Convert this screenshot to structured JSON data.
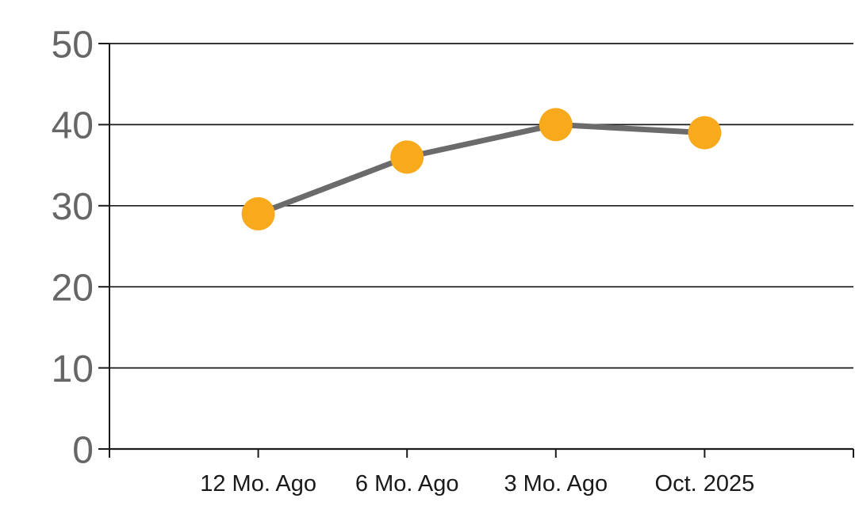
{
  "chart_data": {
    "type": "line",
    "categories": [
      "12 Mo. Ago",
      "6 Mo. Ago",
      "3 Mo. Ago",
      "Oct. 2025"
    ],
    "values": [
      29,
      36,
      40,
      39
    ],
    "ylim": [
      0,
      50
    ],
    "y_ticks": [
      0,
      10,
      20,
      30,
      40,
      50
    ],
    "grid": "horizontal",
    "legend_position": "none",
    "colors": {
      "marker": "#F9A91C",
      "line": "#6B6B6B",
      "gridline": "#1A1A1A",
      "axis": "#1A1A1A",
      "y_tick_label": "#666666",
      "x_tick_label": "#1A1A1A",
      "background": "#FFFFFF"
    }
  }
}
